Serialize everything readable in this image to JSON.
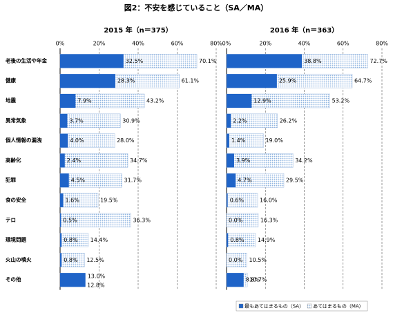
{
  "title": "図2：不安を感じていること（SA／MA）",
  "chart_data": [
    {
      "type": "bar",
      "orientation": "horizontal",
      "title": "2015 年（n＝375）",
      "categories": [
        "老後の生活や年金",
        "健康",
        "地震",
        "異常気象",
        "個人情報の漏洩",
        "高齢化",
        "犯罪",
        "食の安全",
        "テロ",
        "環境問題",
        "火山の噴火",
        "その他"
      ],
      "series": [
        {
          "name": "あてはまるもの（MA）",
          "color": "#8fb4e0",
          "values": [
            70.1,
            61.1,
            43.2,
            30.9,
            28.0,
            34.7,
            31.7,
            19.5,
            36.3,
            14.4,
            12.5,
            12.8
          ],
          "value_labels": [
            "70.1%",
            "61.1%",
            "43.2%",
            "30.9%",
            "28.0%",
            "34.7%",
            "31.7%",
            "19.5%",
            "36.3%",
            "14.4%",
            "12.5%",
            "12.8%"
          ]
        },
        {
          "name": "最もあてはまるもの（SA）",
          "color": "#1f64c8",
          "values": [
            32.5,
            28.3,
            7.9,
            3.7,
            4.0,
            2.4,
            4.5,
            1.6,
            0.5,
            0.8,
            0.8,
            13.0
          ],
          "value_labels": [
            "32.5%",
            "28.3%",
            "7.9%",
            "3.7%",
            "4.0%",
            "2.4%",
            "4.5%",
            "1.6%",
            "0.5%",
            "0.8%",
            "0.8%",
            "13.0%"
          ]
        }
      ],
      "xlim": [
        0,
        80
      ],
      "xticks": [
        {
          "value": 0,
          "label": "0%"
        },
        {
          "value": 20,
          "label": "20%"
        },
        {
          "value": 40,
          "label": "40%"
        },
        {
          "value": 60,
          "label": "60%"
        },
        {
          "value": 80,
          "label": "80%"
        }
      ],
      "grid": true
    },
    {
      "type": "bar",
      "orientation": "horizontal",
      "title": "2016 年（n＝363）",
      "series": [
        {
          "color": "#8fb4e0",
          "values": [
            72.7,
            64.7,
            53.2,
            26.2,
            19.0,
            34.2,
            29.5,
            16.0,
            16.3,
            14.9,
            10.5,
            10.7
          ],
          "value_labels": [
            "72.7%",
            "64.7%",
            "53.2%",
            "26.2%",
            "19.0%",
            "34.2%",
            "29.5%",
            "16.0%",
            "16.3%",
            "14.9%",
            "10.5%",
            "10.7%"
          ]
        },
        {
          "color": "#1f64c8",
          "values": [
            38.8,
            25.9,
            12.9,
            2.2,
            1.4,
            3.9,
            4.7,
            0.6,
            0.0,
            0.8,
            0.0,
            8.8
          ],
          "value_labels": [
            "38.8%",
            "25.9%",
            "12.9%",
            "2.2%",
            "1.4%",
            "3.9%",
            "4.7%",
            "0.6%",
            "0.0%",
            "0.8%",
            "0.0%",
            "8.8%"
          ]
        }
      ],
      "xlim": [
        0,
        80
      ],
      "xticks": [
        {
          "value": 0,
          "label": "0%"
        },
        {
          "value": 20,
          "label": "20%"
        },
        {
          "value": 40,
          "label": "40%"
        },
        {
          "value": 60,
          "label": "60%"
        },
        {
          "value": 80,
          "label": "80%"
        }
      ],
      "grid": true
    }
  ]
}
